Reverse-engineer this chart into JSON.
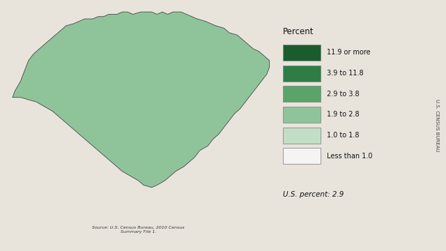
{
  "background_color": "#e8e4dc",
  "map_bg_color": "#cce5f0",
  "legend_title": "Percent",
  "legend_items": [
    {
      "label": "11.9 or more",
      "color": "#1a5c2e"
    },
    {
      "label": "3.9 to 11.8",
      "color": "#2e7d45"
    },
    {
      "label": "2.9 to 3.8",
      "color": "#5aa46a"
    },
    {
      "label": "1.9 to 2.8",
      "color": "#8fc49a"
    },
    {
      "label": "1.0 to 1.8",
      "color": "#c2dfc6"
    },
    {
      "label": "Less than 1.0",
      "color": "#f4f4f2"
    }
  ],
  "us_percent_note": "U.S. percent: 2.9",
  "source_text": "Source: U.S. Census Bureau, 2010 Census\nSummary File 1.",
  "sidebar_text": "U.S. CENSUS BUREAU",
  "county_edge_color": "#ffffff",
  "state_edge_color": "#333333",
  "county_edge_width": 0.15,
  "state_edge_width": 0.6
}
